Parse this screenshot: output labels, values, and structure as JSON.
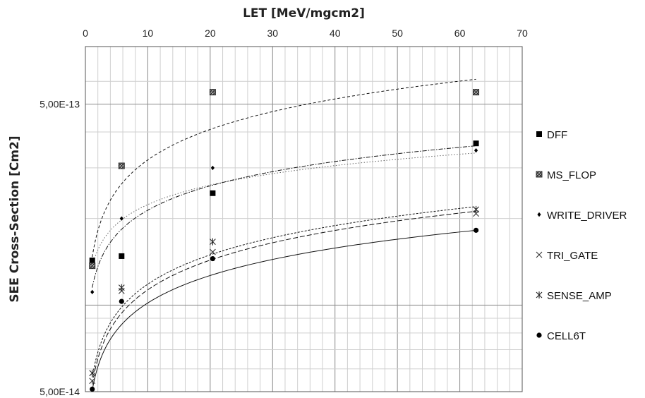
{
  "chart_data": {
    "type": "scatter",
    "xlabel": "LET [MeV/mgcm2]",
    "ylabel": "SEE Cross-Section [Cm2]",
    "x_axis_position": "top",
    "xlim": [
      0,
      70
    ],
    "x_ticks": [
      0,
      10,
      20,
      30,
      40,
      50,
      60,
      70
    ],
    "y_scale": "log",
    "ylim": [
      5e-14,
      5e-13
    ],
    "y_ticks": [
      5e-14,
      5e-13
    ],
    "y_tick_labels": [
      "5,00E-14",
      "5,00E-13"
    ],
    "grid": true,
    "legend_position": "right",
    "series": [
      {
        "name": "DFF",
        "marker": "square",
        "x": [
          1.1,
          5.8,
          20.4,
          62.6
        ],
        "y": [
          1.43e-13,
          1.48e-13,
          2.45e-13,
          3.65e-13
        ],
        "trend": "dot",
        "trend_start": [
          1.1,
          1.36e-13
        ],
        "trend_end": [
          62.6,
          3.38e-13
        ]
      },
      {
        "name": "MS_FLOP",
        "marker": "hatched-square",
        "x": [
          1.1,
          5.8,
          20.4,
          62.6
        ],
        "y": [
          1.37e-13,
          3.05e-13,
          5.5e-13,
          5.5e-13
        ],
        "trend": "dash",
        "trend_start": [
          1.1,
          1.47e-13
        ],
        "trend_end": [
          62.6,
          6.1e-13
        ]
      },
      {
        "name": "WRITE_DRIVER",
        "marker": "diamond",
        "x": [
          1.1,
          5.8,
          20.4,
          62.6
        ],
        "y": [
          1.11e-13,
          2e-13,
          3e-13,
          3.45e-13
        ],
        "trend": "dashdot",
        "trend_start": [
          1.1,
          1.15e-13
        ],
        "trend_end": [
          62.6,
          3.58e-13
        ]
      },
      {
        "name": "TRI_GATE",
        "marker": "x",
        "x": [
          1.1,
          5.8,
          20.4,
          62.6
        ],
        "y": [
          5.45e-14,
          1.12e-13,
          1.53e-13,
          2.08e-13
        ],
        "trend": "longdash",
        "trend_start": [
          1.1,
          5.3e-14
        ],
        "trend_end": [
          62.6,
          2.12e-13
        ]
      },
      {
        "name": "SENSE_AMP",
        "marker": "asterisk",
        "x": [
          1.1,
          5.8,
          20.4,
          62.6
        ],
        "y": [
          5.8e-14,
          1.15e-13,
          1.66e-13,
          2.15e-13
        ],
        "trend": "shortdash",
        "trend_start": [
          1.1,
          5.6e-14
        ],
        "trend_end": [
          62.6,
          2.2e-13
        ]
      },
      {
        "name": "CELL6T",
        "marker": "circle",
        "x": [
          1.1,
          5.8,
          20.4,
          62.6
        ],
        "y": [
          5.1e-14,
          1.03e-13,
          1.45e-13,
          1.82e-13
        ],
        "trend": "solid",
        "trend_start": [
          1.1,
          5.05e-14
        ],
        "trend_end": [
          62.6,
          1.82e-13
        ]
      }
    ]
  }
}
